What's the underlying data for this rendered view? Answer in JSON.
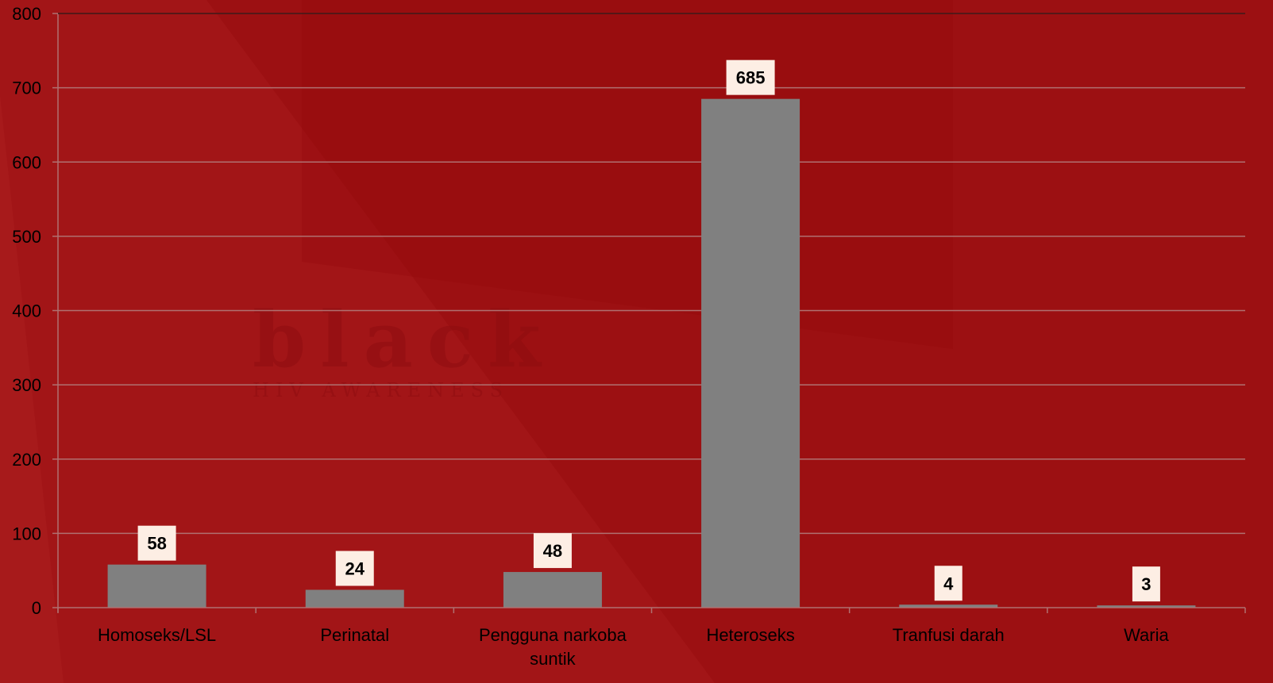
{
  "colors": {
    "background": "#9c1012",
    "bar": "#808080",
    "gridline": "#b07070",
    "label_box": "#fdeee4",
    "text": "#000000"
  },
  "watermark": {
    "title": "black",
    "subtitle": "HIV AWARENESS"
  },
  "chart_data": {
    "type": "bar",
    "categories": [
      "Homoseks/LSL",
      "Perinatal",
      "Pengguna narkoba suntik",
      "Heteroseks",
      "Tranfusi darah",
      "Waria"
    ],
    "values": [
      58,
      24,
      48,
      685,
      4,
      3
    ],
    "ylim": [
      0,
      800
    ],
    "y_ticks": [
      0,
      100,
      200,
      300,
      400,
      500,
      600,
      700,
      800
    ],
    "grid": true,
    "data_labels": true,
    "legend": "none"
  }
}
